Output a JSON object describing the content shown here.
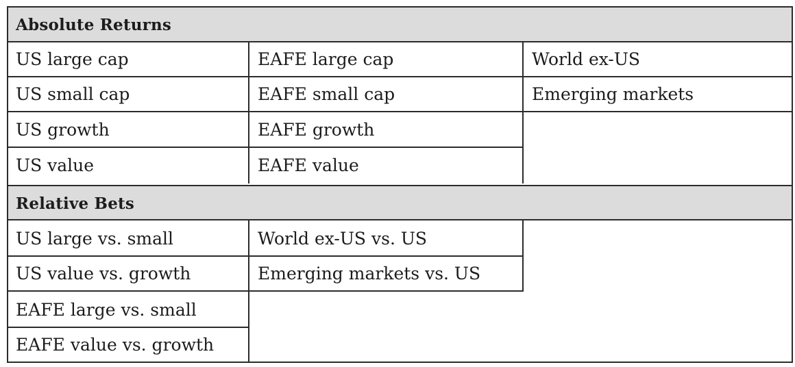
{
  "absolute_returns": {
    "header": "Absolute Returns",
    "col1": [
      "US large cap",
      "US small cap",
      "US growth",
      "US value"
    ],
    "col2": [
      "EAFE large cap",
      "EAFE small cap",
      "EAFE growth",
      "EAFE value"
    ],
    "col3": [
      "World ex-US",
      "Emerging markets"
    ]
  },
  "relative_bets": {
    "header": "Relative Bets",
    "col1": [
      "US large vs. small",
      "US value vs. growth",
      "EAFE large vs. small",
      "EAFE value vs. growth"
    ],
    "col2": [
      "World ex-US vs. US",
      "Emerging markets vs. US"
    ]
  }
}
